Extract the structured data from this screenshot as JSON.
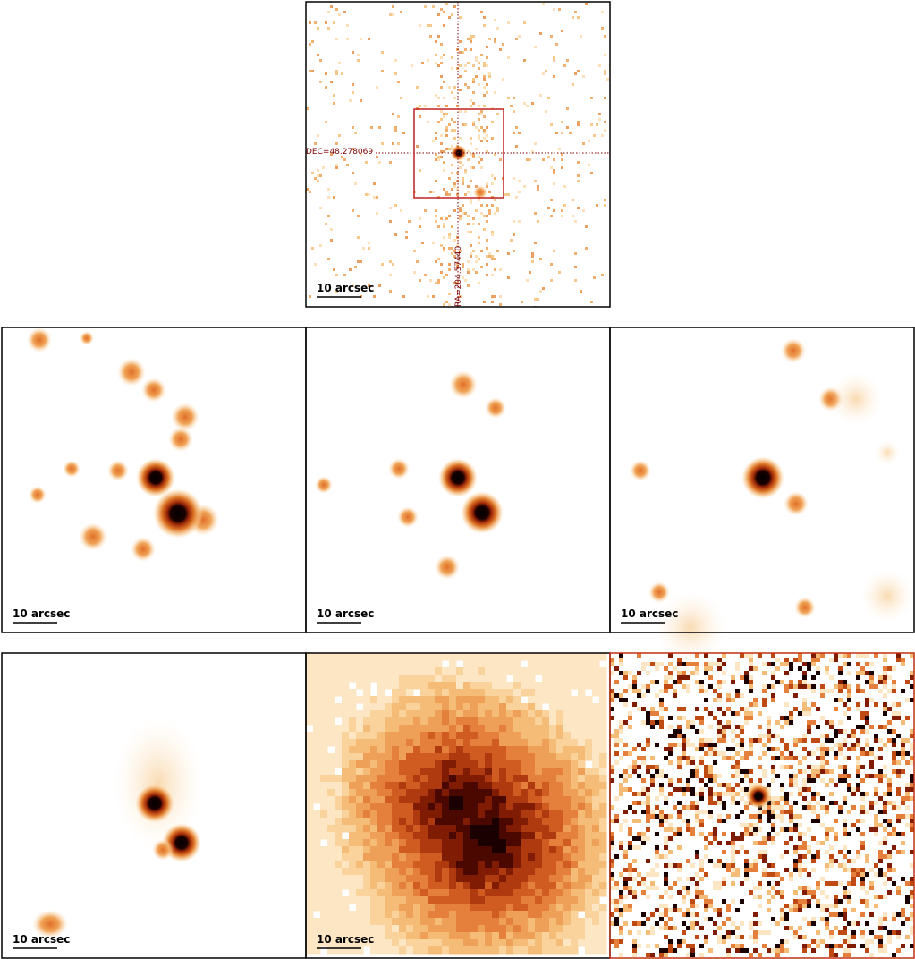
{
  "crosshair": {
    "dec_label": "DEC=48.278069",
    "ra_label": "RA=204.57440"
  },
  "scale_labels": [
    "10 arcsec",
    "10 arcsec",
    "10 arcsec",
    "10 arcsec",
    "10 arcsec",
    "10 arcsec"
  ]
}
